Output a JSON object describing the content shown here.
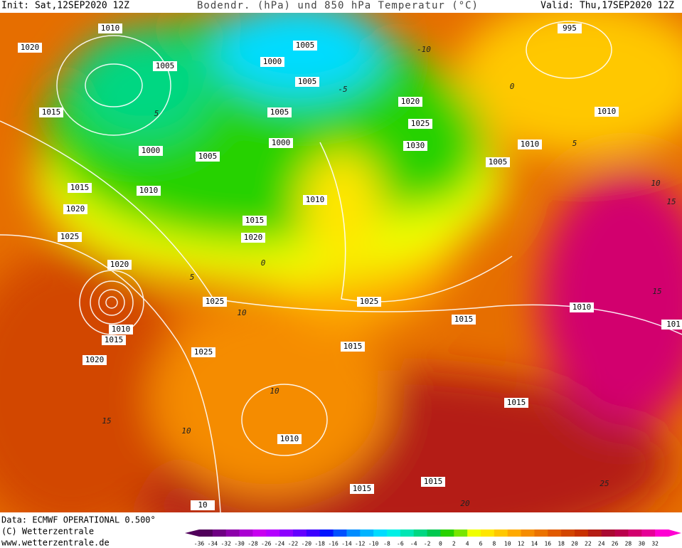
{
  "header": {
    "init": "Init: Sat,12SEP2020 12Z",
    "title": "Bodendr. (hPa) und 850 hPa Temperatur (°C)",
    "valid": "Valid: Thu,17SEP2020 12Z"
  },
  "footer": {
    "data": "Data: ECMWF OPERATIONAL 0.500°",
    "copyright": "(C) Wetterzentrale",
    "url": "www.wetterzentrale.de"
  },
  "colorbar": {
    "ticks": [
      -36,
      -34,
      -32,
      -30,
      -28,
      -26,
      -24,
      -22,
      -20,
      -18,
      -16,
      -14,
      -12,
      -10,
      -8,
      -6,
      -4,
      -2,
      0,
      2,
      4,
      6,
      8,
      10,
      12,
      14,
      16,
      18,
      20,
      22,
      24,
      26,
      28,
      30,
      32
    ],
    "colors": [
      "#50005a",
      "#6e0082",
      "#8c00aa",
      "#aa00d2",
      "#c800f0",
      "#b400ff",
      "#8c00ff",
      "#6400ff",
      "#3c00ff",
      "#0014ff",
      "#0050ff",
      "#008cff",
      "#00b4ff",
      "#00dcff",
      "#00f0e6",
      "#00e6b4",
      "#00d782",
      "#00c850",
      "#28d200",
      "#78e600",
      "#f0ff00",
      "#ffe600",
      "#ffc800",
      "#ffaa00",
      "#f58c00",
      "#eb7300",
      "#e15a00",
      "#d24600",
      "#c83200",
      "#b41e14",
      "#aa0a32",
      "#b9004b",
      "#d2006e",
      "#e60096",
      "#ff00d2"
    ]
  },
  "map": {
    "isobar_labels": [
      "1010",
      "1020",
      "1005",
      "1015",
      "1000",
      "1005",
      "1010",
      "1015",
      "1020",
      "1025",
      "1000",
      "1005",
      "1005",
      "1005",
      "1000",
      "1020",
      "1025",
      "1030",
      "1010",
      "1005",
      "995",
      "1010",
      "1010",
      "1015",
      "1020",
      "1020",
      "1025",
      "1010",
      "1015",
      "1020",
      "1025",
      "1025",
      "1015",
      "1015",
      "1010",
      "1010",
      "1015",
      "1015",
      "1015",
      "101",
      "10"
    ],
    "isotherm_labels": [
      "-10",
      "5",
      "10",
      "0",
      "-5",
      "5",
      "10",
      "15",
      "10",
      "15",
      "10",
      "15",
      "20",
      "25",
      "0",
      "5"
    ]
  }
}
